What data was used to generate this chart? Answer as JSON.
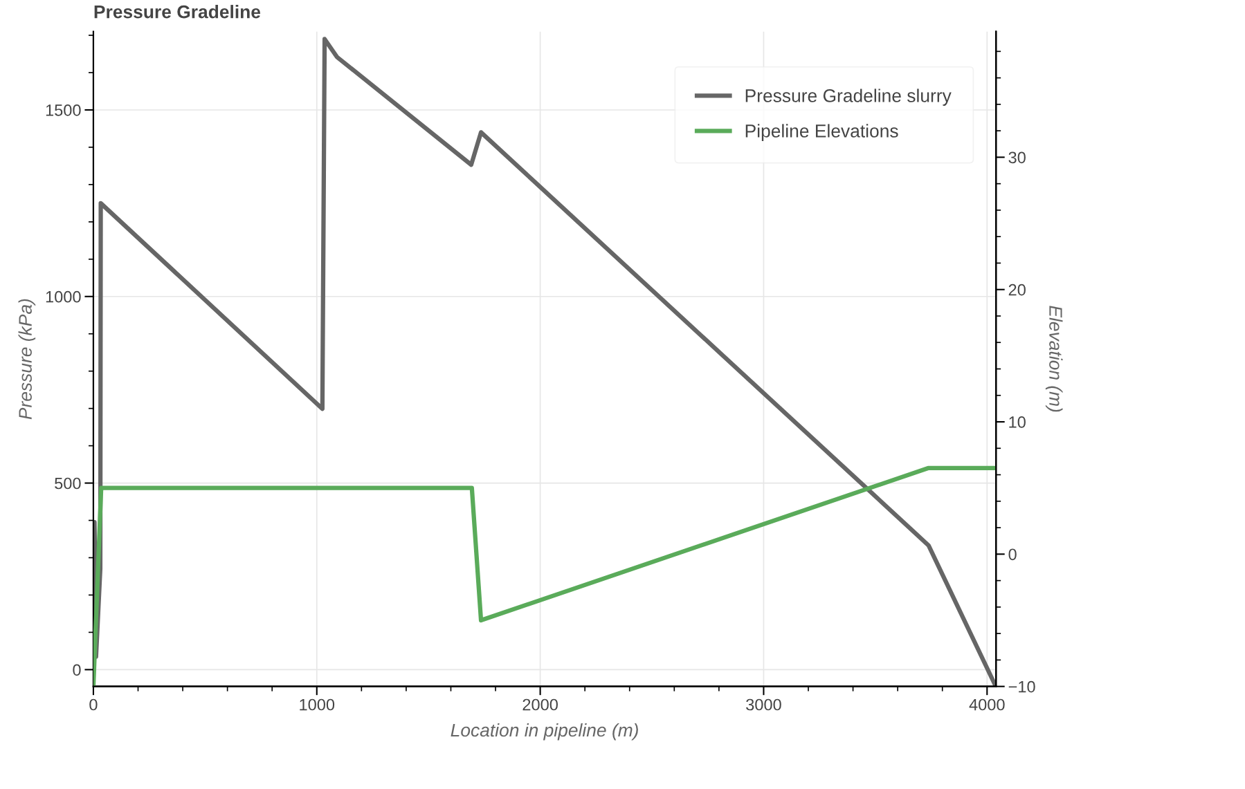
{
  "chart_data": {
    "type": "line",
    "title": "Pressure Gradeline",
    "xlabel": "Location in pipeline (m)",
    "ylabel": "Pressure (kPa)",
    "y2label": "Elevation (m)",
    "series": [
      {
        "name": "Pressure Gradeline slurry",
        "color": "#666666",
        "x": [
          0,
          5,
          12,
          31,
          33,
          1025,
          1035,
          1090,
          1691,
          1735,
          3738,
          4036
        ],
        "values": [
          0,
          395,
          35,
          270,
          1250,
          699,
          1690,
          1642,
          1353,
          1440,
          333,
          -41
        ]
      },
      {
        "name": "Pipeline Elevations",
        "color": "#5aab5a",
        "axis": "y2",
        "x": [
          0,
          35,
          1694,
          1735,
          3736,
          4040
        ],
        "values": [
          -10,
          5.0,
          5.0,
          -5.0,
          6.5,
          6.5
        ]
      }
    ],
    "xlim": [
      0,
      4040
    ],
    "xticks": [
      0,
      1000,
      2000,
      3000,
      4000
    ],
    "ylim": [
      -45,
      1710
    ],
    "yticks": [
      0,
      500,
      1000,
      1500
    ],
    "y2lim": [
      -10,
      39.5
    ],
    "y2ticks": [
      -10,
      0,
      10,
      20,
      30
    ],
    "grid": true,
    "legend": "top right",
    "line_style": "solid",
    "marker": "none"
  }
}
